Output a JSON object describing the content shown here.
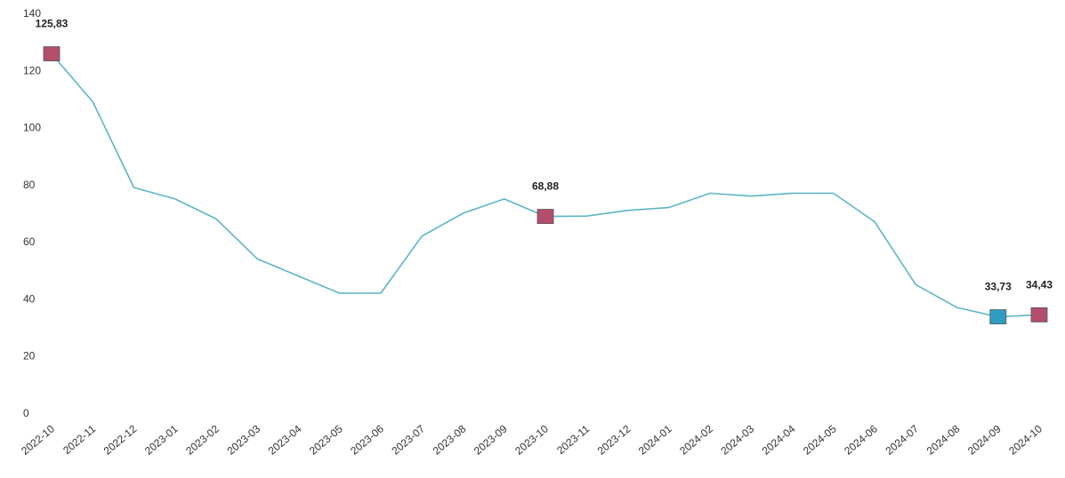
{
  "chart_data": {
    "type": "line",
    "categories": [
      "2022-10",
      "2022-11",
      "2022-12",
      "2023-01",
      "2023-02",
      "2023-03",
      "2023-04",
      "2023-05",
      "2023-06",
      "2023-07",
      "2023-08",
      "2023-09",
      "2023-10",
      "2023-11",
      "2023-12",
      "2024-01",
      "2024-02",
      "2024-03",
      "2024-04",
      "2024-05",
      "2024-06",
      "2024-07",
      "2024-08",
      "2024-09",
      "2024-10"
    ],
    "series": [
      {
        "values": [
          125.83,
          109,
          79,
          75,
          68,
          54,
          48,
          42,
          42,
          62,
          70,
          75,
          68.88,
          69,
          71,
          72,
          77,
          76,
          77,
          77,
          67,
          45,
          37,
          33.73,
          34.43
        ]
      }
    ],
    "ylim": [
      0,
      140
    ],
    "yticks": [
      0,
      20,
      40,
      60,
      80,
      100,
      120,
      140
    ],
    "grid": false,
    "line_color": "#5bb5c8",
    "markers": [
      {
        "index": 0,
        "label": "125,83",
        "color": "#b34e6c"
      },
      {
        "index": 12,
        "label": "68,88",
        "color": "#b34e6c"
      },
      {
        "index": 23,
        "label": "33,73",
        "color": "#2e9dc4"
      },
      {
        "index": 24,
        "label": "34,43",
        "color": "#b34e6c"
      }
    ]
  }
}
